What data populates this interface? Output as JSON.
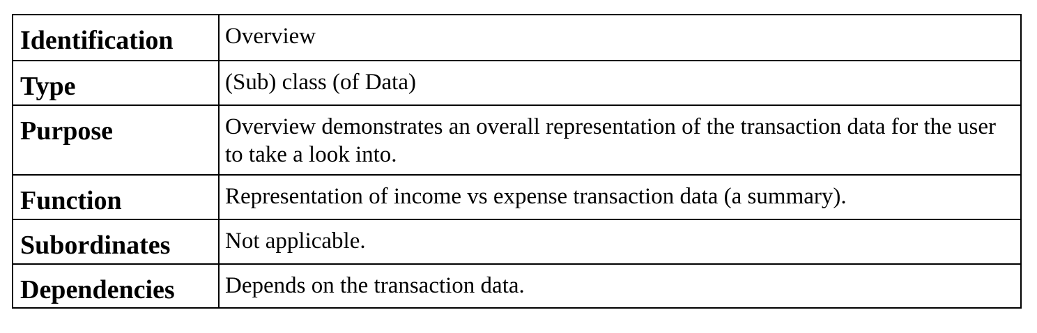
{
  "rows": [
    {
      "label": "Identification",
      "value": "Overview"
    },
    {
      "label": "Type",
      "value": "(Sub) class (of Data)"
    },
    {
      "label": "Purpose",
      "value": "Overview demonstrates an overall representation of the transaction data for the user to take a look into."
    },
    {
      "label": "Function",
      "value": "Representation of income vs expense transaction data (a summary)."
    },
    {
      "label": "Subordinates",
      "value": "Not applicable."
    },
    {
      "label": "Dependencies",
      "value": "Depends on the transaction data."
    }
  ]
}
